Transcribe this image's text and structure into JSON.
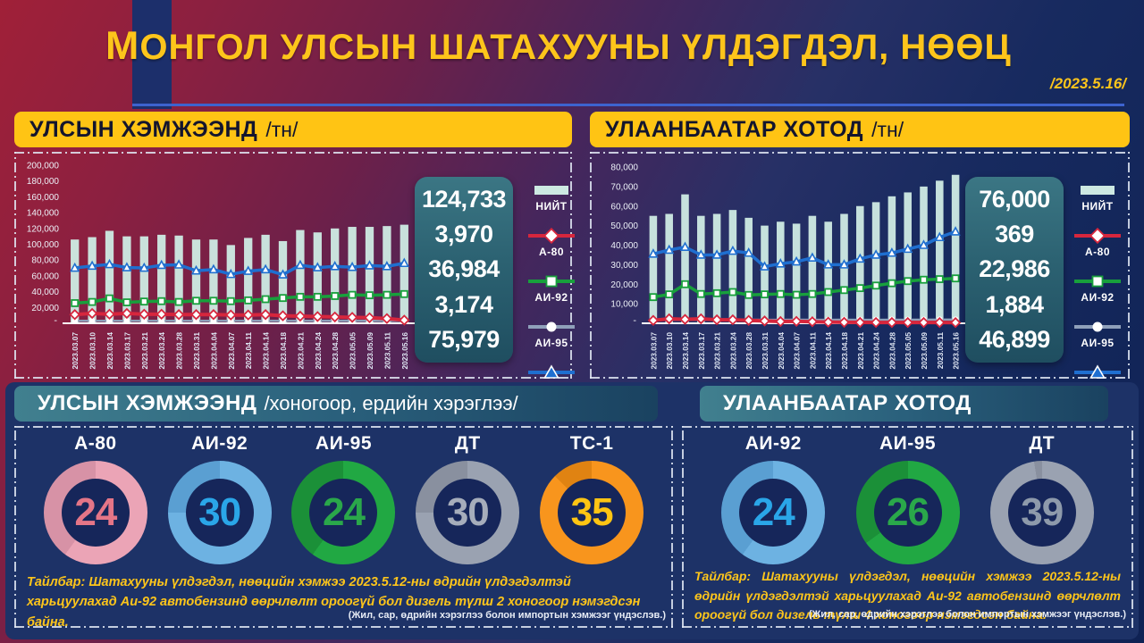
{
  "page": {
    "title": "МОНГОЛ УЛСЫН ШАТАХУУНЫ ҮЛДЭГДЭЛ, НӨӨЦ",
    "date": "/2023.5.16/"
  },
  "panels": {
    "national": {
      "header": "УЛСЫН ХЭМЖЭЭНД",
      "header_unit": "/тн/",
      "totals": [
        "124,733",
        "3,970",
        "36,984",
        "3,174",
        "75,979"
      ]
    },
    "ub": {
      "header": "УЛААНБААТАР ХОТОД",
      "header_unit": "/тн/",
      "totals": [
        "76,000",
        "369",
        "22,986",
        "1,884",
        "46,899"
      ]
    }
  },
  "legend": [
    {
      "label": "НИЙТ",
      "marker": "bar",
      "color": "#cde9e2"
    },
    {
      "label": "А-80",
      "marker": "diamond",
      "color": "#d7263d"
    },
    {
      "label": "АИ-92",
      "marker": "square",
      "color": "#18a03c"
    },
    {
      "label": "АИ-95",
      "marker": "circle",
      "color": "#8fa0ba"
    },
    {
      "label": "ДТ",
      "marker": "triangle",
      "color": "#1f6fd0"
    }
  ],
  "chart_data": [
    {
      "type": "bar+line",
      "title": "УЛСЫН ХЭМЖЭЭНД /тн/",
      "ylim": [
        0,
        200000
      ],
      "ytick_step": 20000,
      "zero_label": "-",
      "bar_color": "#cde9e2",
      "categories": [
        "2023.03.07",
        "2023.03.10",
        "2023.03.14",
        "2023.03.17",
        "2023.03.21",
        "2023.03.24",
        "2023.03.28",
        "2023.03.31",
        "2023.04.04",
        "2023.04.07",
        "2023.04.11",
        "2023.04.14",
        "2023.04.18",
        "2023.04.21",
        "2023.04.24",
        "2023.04.28",
        "2023.05.05",
        "2023.05.09",
        "2023.05.11",
        "2023.05.16"
      ],
      "bar_series": {
        "name": "НИЙТ",
        "values": [
          106000,
          109000,
          117000,
          110000,
          110000,
          112000,
          111000,
          106000,
          106000,
          99000,
          108000,
          112000,
          104000,
          118000,
          115000,
          120000,
          122000,
          122000,
          123000,
          124733
        ]
      },
      "line_series": [
        {
          "name": "АИ-95",
          "color": "#8fa0ba",
          "marker": "circle",
          "width": 2.5,
          "values": [
            3100,
            3100,
            3150,
            3100,
            3150,
            3100,
            3100,
            3150,
            3100,
            3100,
            3150,
            3100,
            3100,
            3150,
            3100,
            3100,
            3150,
            3100,
            3150,
            3174
          ]
        },
        {
          "name": "А-80",
          "color": "#d7263d",
          "marker": "diamond",
          "width": 4,
          "values": [
            11000,
            12500,
            11500,
            12500,
            11500,
            11500,
            11000,
            11000,
            11000,
            10500,
            10500,
            11000,
            9500,
            9000,
            8500,
            8000,
            7500,
            7000,
            6000,
            3970
          ]
        },
        {
          "name": "АИ-92",
          "color": "#18a03c",
          "marker": "square",
          "width": 3.5,
          "values": [
            25500,
            27000,
            31500,
            26500,
            27500,
            28000,
            27000,
            28500,
            28500,
            28000,
            29000,
            30500,
            32000,
            33500,
            33500,
            34500,
            36000,
            35500,
            36000,
            36984
          ]
        },
        {
          "name": "ДТ",
          "color": "#1f6fd0",
          "marker": "triangle",
          "width": 3.5,
          "values": [
            70000,
            72500,
            74500,
            70500,
            70000,
            73500,
            74000,
            66500,
            68000,
            62000,
            66000,
            68000,
            61500,
            73500,
            70500,
            72000,
            71000,
            73000,
            72000,
            75979
          ]
        }
      ]
    },
    {
      "type": "bar+line",
      "title": "УЛААНБААТАР ХОТОД /тн/",
      "ylim": [
        0,
        80000
      ],
      "ytick_step": 10000,
      "zero_label": "-",
      "bar_color": "#cde9e2",
      "categories": [
        "2023.03.07",
        "2023.03.10",
        "2023.03.14",
        "2023.03.17",
        "2023.03.21",
        "2023.03.24",
        "2023.03.28",
        "2023.03.31",
        "2023.04.04",
        "2023.04.07",
        "2023.04.11",
        "2023.04.14",
        "2023.04.18",
        "2023.04.21",
        "2023.04.24",
        "2023.04.28",
        "2023.05.05",
        "2023.05.09",
        "2023.05.11",
        "2023.05.16"
      ],
      "bar_series": {
        "name": "НИЙТ",
        "values": [
          55000,
          56000,
          66000,
          55000,
          56000,
          58000,
          54000,
          50000,
          52000,
          51000,
          55000,
          52000,
          56000,
          60000,
          62000,
          65000,
          67000,
          70000,
          73000,
          76000
        ]
      },
      "line_series": [
        {
          "name": "АИ-95",
          "color": "#8fa0ba",
          "marker": "circle",
          "width": 2.5,
          "values": [
            1800,
            1850,
            1800,
            1850,
            1800,
            1800,
            1850,
            1800,
            1800,
            1850,
            1800,
            1800,
            1850,
            1800,
            1800,
            1850,
            1800,
            1850,
            1870,
            1884
          ]
        },
        {
          "name": "А-80",
          "color": "#d7263d",
          "marker": "diamond",
          "width": 4,
          "values": [
            1500,
            2300,
            2000,
            2300,
            1800,
            1800,
            1500,
            1200,
            900,
            1000,
            800,
            600,
            500,
            450,
            420,
            400,
            400,
            390,
            380,
            369
          ]
        },
        {
          "name": "АИ-92",
          "color": "#18a03c",
          "marker": "square",
          "width": 3.5,
          "values": [
            13400,
            14800,
            20000,
            15000,
            15400,
            16000,
            14500,
            14800,
            15000,
            14600,
            15000,
            16000,
            17000,
            18000,
            19300,
            20500,
            21600,
            22300,
            22600,
            22986
          ]
        },
        {
          "name": "ДТ",
          "color": "#1f6fd0",
          "marker": "triangle",
          "width": 3.5,
          "values": [
            35500,
            37500,
            39000,
            35000,
            35000,
            37000,
            36000,
            29000,
            30500,
            31500,
            33500,
            30000,
            30000,
            33000,
            35000,
            36000,
            38000,
            40000,
            44000,
            46899
          ]
        }
      ]
    }
  ],
  "gauge_max": 40,
  "consumption": {
    "national": {
      "header": "УЛСЫН ХЭМЖЭЭНД",
      "header_suffix": "/хоногоор, ердийн хэрэглээ/",
      "gauges": [
        {
          "label": "А-80",
          "value": 24,
          "ring": "#eba4b6",
          "ring_rest": "#d792a6",
          "num": "#e47587"
        },
        {
          "label": "АИ-92",
          "value": 30,
          "ring": "#6db2e2",
          "ring_rest": "#5a9fd2",
          "num": "#2aa6e8"
        },
        {
          "label": "АИ-95",
          "value": 24,
          "ring": "#21a843",
          "ring_rest": "#1b9038",
          "num": "#2aa84a"
        },
        {
          "label": "ДТ",
          "value": 30,
          "ring": "#9aa2b1",
          "ring_rest": "#89909f",
          "num": "#a6adbb"
        },
        {
          "label": "ТС-1",
          "value": 35,
          "ring": "#f8951d",
          "ring_rest": "#e08312",
          "num": "#ffc513"
        }
      ],
      "note": "Тайлбар: Шатахууны үлдэгдэл, нөөцийн хэмжээ 2023.5.12-ны өдрийн үлдэгдэлтэй харьцуулахад Аи-92 автобензинд өөрчлөлт ороогүй бол дизель түлш 2 хоногоор нэмэгдсэн байна.",
      "source": "(Жил, сар, өдрийн хэрэглээ болон импортын хэмжээг үндэслэв.)"
    },
    "ub": {
      "header": "УЛААНБААТАР ХОТОД",
      "gauges": [
        {
          "label": "АИ-92",
          "value": 24,
          "ring": "#6db2e2",
          "ring_rest": "#5a9fd2",
          "num": "#2aa6e8"
        },
        {
          "label": "АИ-95",
          "value": 26,
          "ring": "#21a843",
          "ring_rest": "#1b9038",
          "num": "#2aa84a"
        },
        {
          "label": "ДТ",
          "value": 39,
          "ring": "#9aa2b1",
          "ring_rest": "#89909f",
          "num": "#8e9aab"
        }
      ],
      "note": "Тайлбар: Шатахууны үлдэгдэл, нөөцийн хэмжээ 2023.5.12-ны өдрийн үлдэгдэлтэй харьцуулахад Аи-92 автобензинд өөрчлөлт ороогүй бол дизель түлш 4 хоногоор нэмэгдсэн байна.",
      "source": "(Жил, сар, өдрийн хэрэглээ болон импортын хэмжээг үндэслэв.)"
    }
  }
}
